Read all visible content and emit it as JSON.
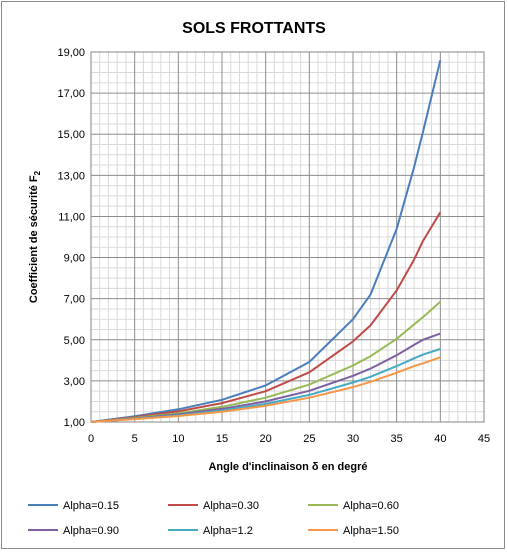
{
  "chart_data": {
    "type": "line",
    "title": "SOLS FROTTANTS",
    "xlabel": "Angle d'inclinaison  δ en degré",
    "ylabel": "Coefficient de sécurité F",
    "ylabel_subscript": "2",
    "xlim": [
      0,
      45
    ],
    "ylim": [
      1,
      19
    ],
    "x_ticks": [
      "0",
      "5",
      "10",
      "15",
      "20",
      "25",
      "30",
      "35",
      "40",
      "45"
    ],
    "y_ticks": [
      "1,00",
      "3,00",
      "5,00",
      "7,00",
      "9,00",
      "11,00",
      "13,00",
      "15,00",
      "17,00",
      "19,00"
    ],
    "grid": true,
    "legend_position": "bottom",
    "x": [
      0,
      5,
      10,
      15,
      20,
      25,
      30,
      32,
      35,
      37,
      38,
      40
    ],
    "series": [
      {
        "name": "Alpha=0.15",
        "color": "#4a7ebb",
        "values": [
          1.0,
          1.28,
          1.62,
          2.08,
          2.78,
          3.92,
          6.0,
          7.2,
          10.4,
          13.4,
          15.1,
          18.6
        ]
      },
      {
        "name": "Alpha=0.30",
        "color": "#be4b48",
        "values": [
          1.0,
          1.24,
          1.52,
          1.92,
          2.5,
          3.42,
          4.92,
          5.7,
          7.4,
          8.9,
          9.8,
          11.2
        ]
      },
      {
        "name": "Alpha=0.60",
        "color": "#98b954",
        "values": [
          1.0,
          1.2,
          1.42,
          1.74,
          2.18,
          2.82,
          3.75,
          4.2,
          5.05,
          5.75,
          6.1,
          6.85
        ]
      },
      {
        "name": "Alpha=0.90",
        "color": "#7d60a0",
        "values": [
          1.0,
          1.17,
          1.37,
          1.64,
          2.0,
          2.52,
          3.25,
          3.6,
          4.25,
          4.75,
          5.0,
          5.3
        ]
      },
      {
        "name": "Alpha=1.2",
        "color": "#46aac5",
        "values": [
          1.0,
          1.15,
          1.32,
          1.56,
          1.88,
          2.32,
          2.92,
          3.2,
          3.72,
          4.1,
          4.28,
          4.55
        ]
      },
      {
        "name": "Alpha=1.50",
        "color": "#f79646",
        "values": [
          1.0,
          1.14,
          1.29,
          1.5,
          1.79,
          2.18,
          2.7,
          2.95,
          3.4,
          3.72,
          3.85,
          4.15
        ]
      }
    ]
  }
}
